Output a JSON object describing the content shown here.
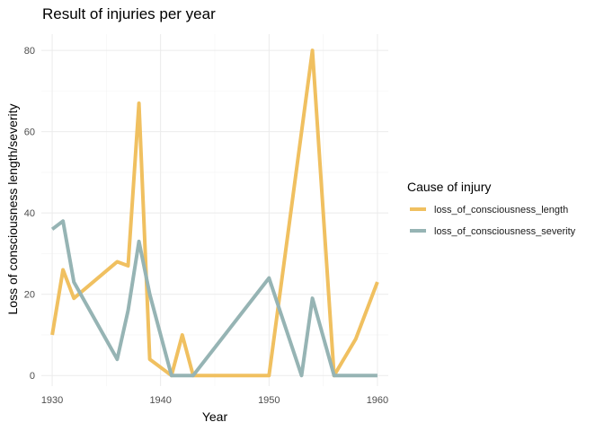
{
  "chart_data": {
    "type": "line",
    "title": "Result of injuries per year",
    "xlabel": "Year",
    "ylabel": "Loss of consciousness length/severity",
    "xlim": [
      1929,
      1961
    ],
    "ylim": [
      -2.6,
      84
    ],
    "x_ticks": [
      1930,
      1940,
      1950,
      1960
    ],
    "y_ticks": [
      0,
      20,
      40,
      60,
      80
    ],
    "grid": true,
    "legend": {
      "title": "Cause of injury",
      "position": "right"
    },
    "series": [
      {
        "name": "loss_of_consciousness_length",
        "color": "#F0C060",
        "x": [
          1930,
          1931,
          1932,
          1936,
          1937,
          1938,
          1939,
          1941,
          1942,
          1943,
          1950,
          1954,
          1956,
          1958,
          1960
        ],
        "y": [
          10,
          26,
          19,
          28,
          27,
          67,
          4,
          0,
          10,
          0,
          0,
          80,
          0,
          9,
          23
        ]
      },
      {
        "name": "loss_of_consciousness_severity",
        "color": "#96B4B4",
        "x": [
          1930,
          1931,
          1932,
          1936,
          1937,
          1938,
          1939,
          1941,
          1943,
          1950,
          1953,
          1954,
          1956,
          1960
        ],
        "y": [
          36,
          38,
          23,
          4,
          16,
          33,
          20,
          0,
          0,
          24,
          0,
          19,
          0,
          0
        ]
      }
    ]
  }
}
